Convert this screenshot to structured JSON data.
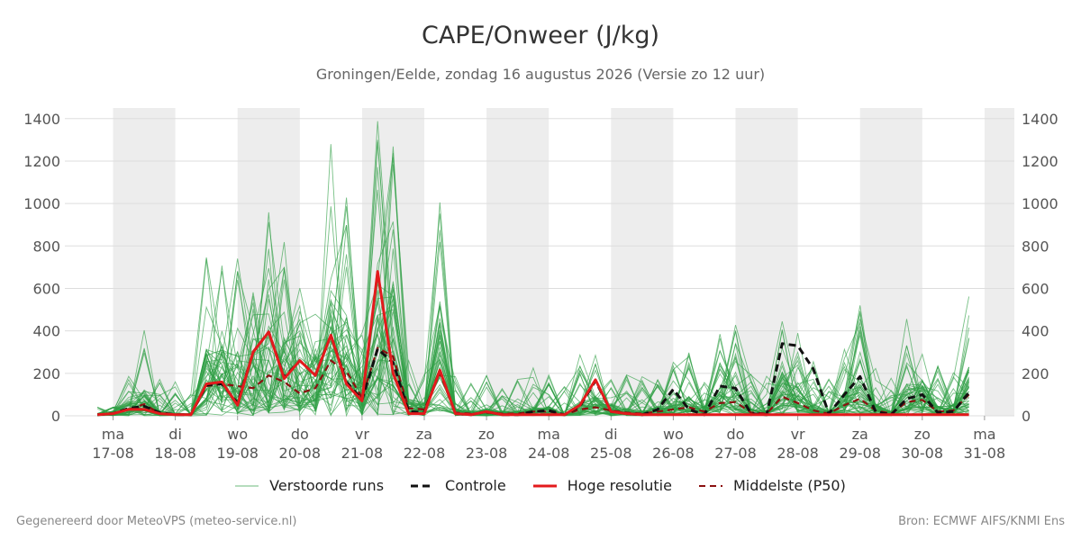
{
  "title": "CAPE/Onweer (J/kg)",
  "subtitle": "Groningen/Eelde, zondag 16 augustus 2026 (Versie zo 12 uur)",
  "footer": {
    "left": "Gegenereerd door MeteoVPS (meteo-service.nl)",
    "right": "Bron: ECMWF AIFS/KNMI Ens"
  },
  "legend": {
    "perturbed": "Verstoorde runs",
    "control": "Controle",
    "hires": "Hoge resolutie",
    "median": "Middelste (P50)"
  },
  "colors": {
    "perturbed": "#2e9e44",
    "control": "#111111",
    "hires": "#e31a1c",
    "median": "#8b1010",
    "band": "#ededed",
    "grid": "#dddddd"
  },
  "chart_data": {
    "type": "line",
    "title": "CAPE/Onweer (J/kg)",
    "ylim": [
      0,
      1450
    ],
    "yticks": [
      0,
      200,
      400,
      600,
      800,
      1000,
      1200,
      1400
    ],
    "grid": true,
    "legend_position": "bottom",
    "x_range_days": [
      -0.25,
      14.5
    ],
    "x_day_labels": [
      {
        "day": "ma",
        "date": "17-08"
      },
      {
        "day": "di",
        "date": "18-08"
      },
      {
        "day": "wo",
        "date": "19-08"
      },
      {
        "day": "do",
        "date": "20-08"
      },
      {
        "day": "vr",
        "date": "21-08"
      },
      {
        "day": "za",
        "date": "22-08"
      },
      {
        "day": "zo",
        "date": "23-08"
      },
      {
        "day": "ma",
        "date": "24-08"
      },
      {
        "day": "di",
        "date": "25-08"
      },
      {
        "day": "wo",
        "date": "26-08"
      },
      {
        "day": "do",
        "date": "27-08"
      },
      {
        "day": "vr",
        "date": "28-08"
      },
      {
        "day": "za",
        "date": "29-08"
      },
      {
        "day": "zo",
        "date": "30-08"
      },
      {
        "day": "ma",
        "date": "31-08"
      }
    ],
    "x_step_days": 0.25,
    "series": [
      {
        "name": "Controle",
        "style": "dashed",
        "values": [
          5,
          10,
          35,
          45,
          15,
          5,
          5,
          145,
          150,
          60,
          300,
          395,
          180,
          260,
          190,
          380,
          160,
          75,
          315,
          250,
          20,
          15,
          215,
          10,
          5,
          20,
          5,
          5,
          20,
          25,
          5,
          45,
          165,
          20,
          10,
          5,
          30,
          125,
          30,
          5,
          140,
          130,
          10,
          5,
          340,
          330,
          220,
          10,
          100,
          185,
          20,
          5,
          80,
          100,
          15,
          20,
          110
        ]
      },
      {
        "name": "Hoge resolutie",
        "style": "solid",
        "values": [
          5,
          10,
          30,
          30,
          10,
          5,
          5,
          150,
          160,
          50,
          300,
          395,
          175,
          260,
          190,
          380,
          150,
          70,
          680,
          200,
          10,
          10,
          215,
          10,
          5,
          20,
          5,
          5,
          5,
          5,
          5,
          50,
          170,
          20,
          10,
          5,
          5,
          5,
          5,
          5,
          5,
          5,
          5,
          5,
          5,
          5,
          5,
          5,
          5,
          5,
          5,
          5,
          5,
          5,
          5,
          5,
          5
        ]
      },
      {
        "name": "Middelste (P50)",
        "style": "dashed",
        "values": [
          5,
          10,
          30,
          55,
          10,
          5,
          5,
          140,
          150,
          140,
          130,
          190,
          160,
          105,
          130,
          260,
          210,
          85,
          320,
          280,
          35,
          30,
          200,
          15,
          10,
          15,
          10,
          10,
          20,
          20,
          5,
          30,
          40,
          25,
          15,
          10,
          20,
          30,
          40,
          20,
          60,
          65,
          15,
          10,
          90,
          60,
          25,
          10,
          50,
          80,
          25,
          10,
          65,
          75,
          20,
          25,
          100
        ]
      }
    ]
  }
}
